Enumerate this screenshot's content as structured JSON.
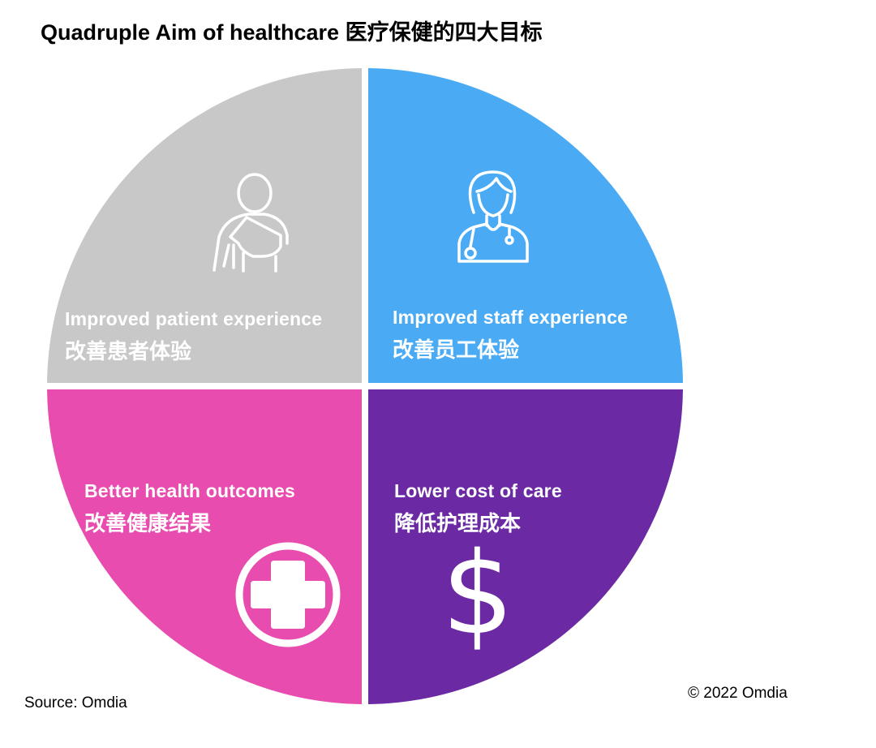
{
  "title": "Quadruple Aim of healthcare 医疗保健的四大目标",
  "quadrants": [
    {
      "id": "patient",
      "label_en": "Improved patient experience",
      "label_zh": "改善患者体验",
      "color": "#c8c8c8",
      "icon": "patient-arm-sling-icon"
    },
    {
      "id": "staff",
      "label_en": "Improved staff experience",
      "label_zh": "改善员工体验",
      "color": "#4aabf4",
      "icon": "doctor-stethoscope-icon"
    },
    {
      "id": "health",
      "label_en": "Better health outcomes",
      "label_zh": "改善健康结果",
      "color": "#e84cae",
      "icon": "medical-cross-icon"
    },
    {
      "id": "cost",
      "label_en": "Lower cost of care",
      "label_zh": "降低护理成本",
      "color": "#6b2aa3",
      "icon": "dollar-sign-icon"
    }
  ],
  "dollar_glyph": "$",
  "source": "Source: Omdia",
  "copyright": "© 2022 Omdia"
}
